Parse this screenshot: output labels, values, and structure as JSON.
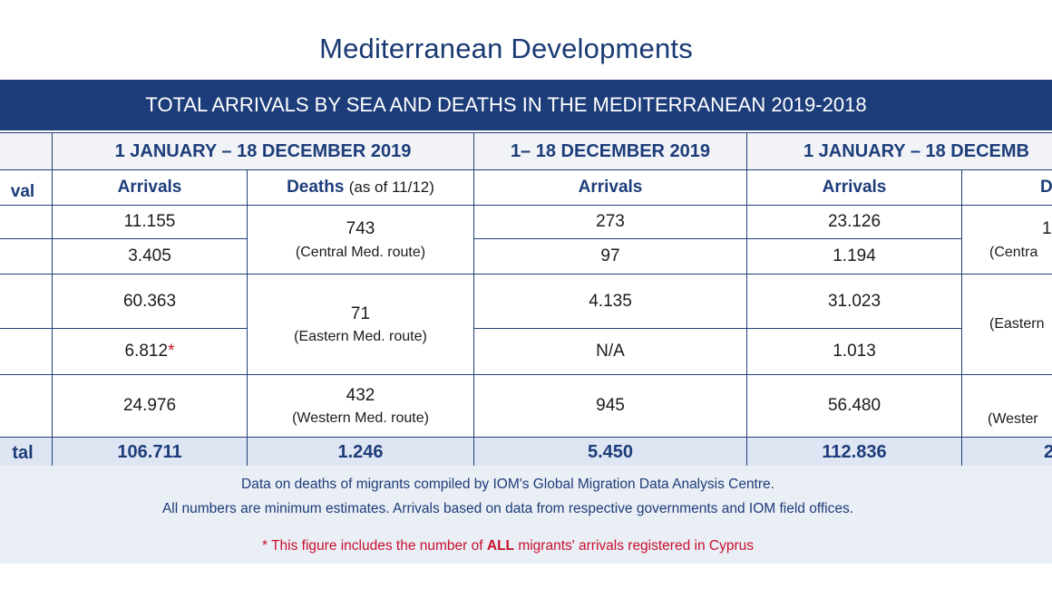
{
  "title": "Mediterranean Developments",
  "banner": "TOTAL ARRIVALS BY SEA AND DEATHS IN THE MEDITERRANEAN 2019-2018",
  "headers": {
    "group_a": "1 JANUARY – 18 DECEMBER 2019",
    "group_b": "1– 18 DECEMBER 2019",
    "group_c": "1 JANUARY – 18 DECEMB",
    "first_col": "val",
    "arrivals": "Arrivals",
    "deaths": "Deaths",
    "deaths_note": "(as of 11/12)",
    "deaths_clip": "D"
  },
  "rows": [
    {
      "a_arrivals": "11.155",
      "b_arrivals": "273",
      "c_arrivals": "23.126"
    },
    {
      "a_arrivals": "3.405",
      "b_arrivals": "97",
      "c_arrivals": "1.194"
    },
    {
      "a_arrivals": "60.363",
      "b_arrivals": "4.135",
      "c_arrivals": "31.023"
    },
    {
      "a_arrivals": "6.812",
      "a_star": "*",
      "b_arrivals": "N/A",
      "c_arrivals": "1.013"
    },
    {
      "a_arrivals": "24.976",
      "b_arrivals": "945",
      "c_arrivals": "56.480"
    }
  ],
  "deaths": {
    "central": {
      "value": "743",
      "route": "(Central Med. route)",
      "clip_value": "1",
      "clip_route": "(Centra"
    },
    "eastern": {
      "value": "71",
      "route": "(Eastern Med. route)",
      "clip_value": "",
      "clip_route": "(Eastern"
    },
    "western": {
      "value": "432",
      "route": "(Western Med. route)",
      "clip_value": "",
      "clip_route": "(Wester"
    }
  },
  "total": {
    "label": "tal",
    "a_arrivals": "106.711",
    "a_deaths": "1.246",
    "b_arrivals": "5.450",
    "c_arrivals": "112.836",
    "c_deaths": "2"
  },
  "notes": {
    "line1": "Data on deaths of migrants compiled by IOM's Global Migration Data Analysis Centre.",
    "line2": "All numbers are minimum estimates. Arrivals based on data from respective governments and IOM field offices.",
    "star": "*",
    "cyprus_pre": " This figure includes the number of ",
    "cyprus_all": "ALL",
    "cyprus_post": " migrants' arrivals registered in Cyprus"
  },
  "colors": {
    "navy": "#1d3d7a",
    "red": "#c8102e",
    "total_fill": "#dfe6f3"
  }
}
